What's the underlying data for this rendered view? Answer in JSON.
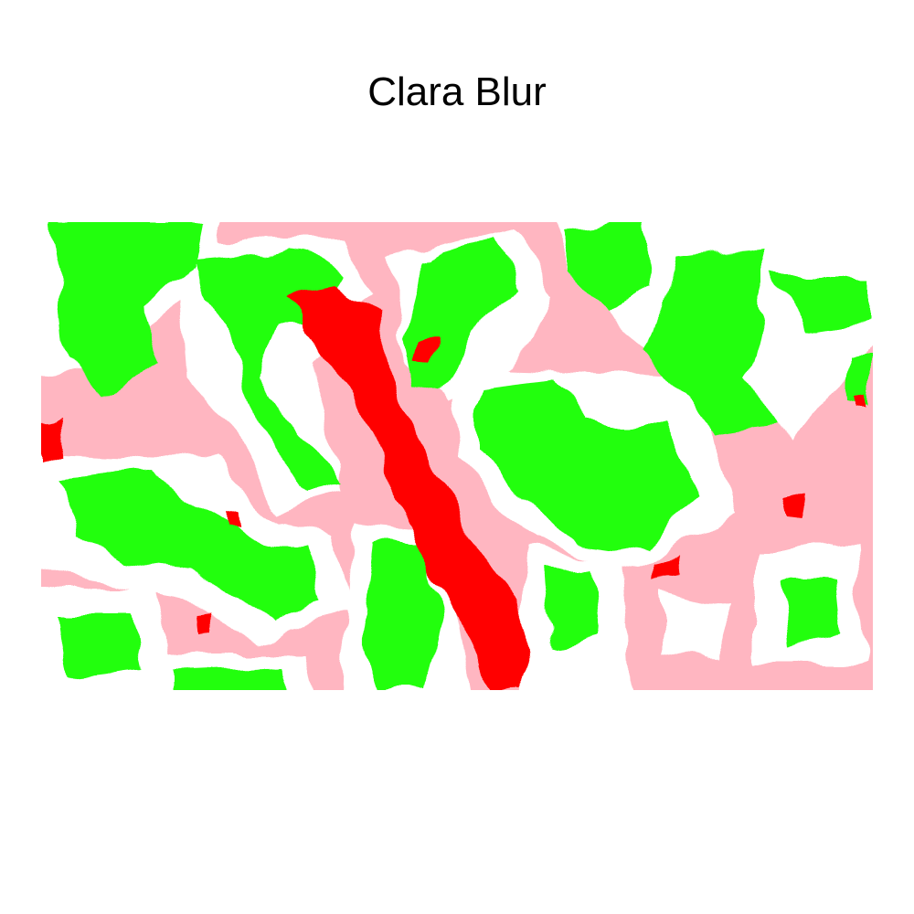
{
  "title": "Clara Blur",
  "legend": [],
  "palette": {
    "background": "#ffffff",
    "high_positive": "#ff0000",
    "low_positive": "#ffb6c1",
    "neutral": "#ffffff",
    "negative": "#22ff11"
  }
}
